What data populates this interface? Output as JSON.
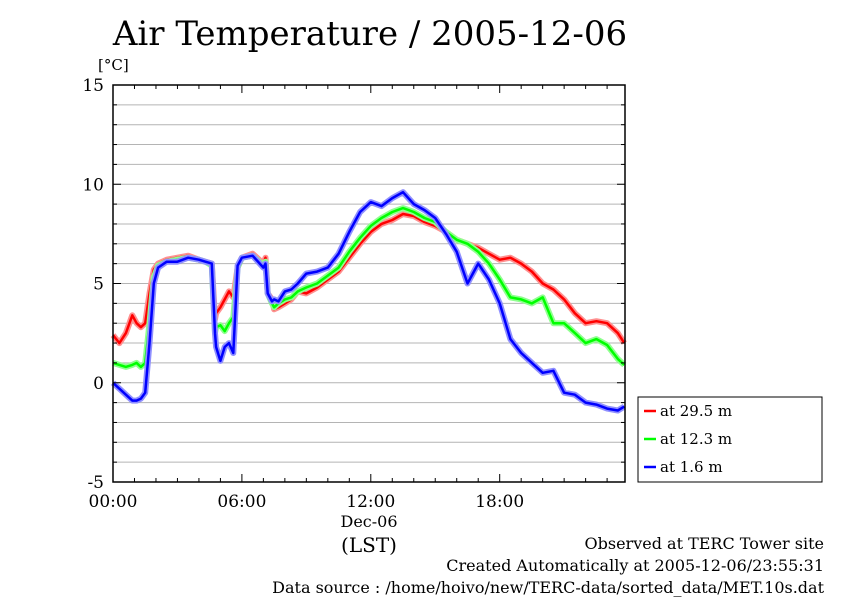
{
  "chart_data": {
    "type": "line",
    "title": "Air Temperature / 2005-12-06",
    "ylabel": "[°C]",
    "ylim": [
      -5,
      15
    ],
    "yticks": [
      -5,
      0,
      5,
      10,
      15
    ],
    "xlim": [
      0,
      23.833
    ],
    "xticks": [
      {
        "hour": 0,
        "label": "00:00"
      },
      {
        "hour": 6,
        "label": "06:00"
      },
      {
        "hour": 12,
        "label": "12:00"
      },
      {
        "hour": 18,
        "label": "18:00"
      }
    ],
    "xsub": "Dec-06",
    "xunit": "(LST)",
    "grid": true,
    "legend_position": "bottom-right outside",
    "series": [
      {
        "name": "at 29.5 m",
        "color": "#ff0000",
        "x": [
          0,
          0.3,
          0.6,
          0.9,
          1.1,
          1.3,
          1.5,
          1.7,
          1.9,
          2.1,
          2.5,
          3,
          3.5,
          4,
          4.3,
          4.6,
          4.75,
          4.8,
          5,
          5.2,
          5.4,
          5.6,
          5.8,
          6,
          6.5,
          7,
          7.1,
          7.2,
          7.4,
          7.5,
          7.7,
          8,
          8.3,
          8.6,
          9,
          9.5,
          10,
          10.5,
          11,
          11.5,
          12,
          12.5,
          13,
          13.5,
          14,
          14.5,
          15,
          15.5,
          16,
          16.5,
          17,
          17.5,
          18,
          18.5,
          19,
          19.5,
          20,
          20.5,
          21,
          21.5,
          22,
          22.5,
          23,
          23.5,
          23.8
        ],
        "values": [
          2.4,
          2.0,
          2.5,
          3.4,
          3.0,
          2.8,
          3.0,
          4.5,
          5.7,
          6.0,
          6.2,
          6.3,
          6.4,
          6.2,
          6.1,
          6.0,
          3.2,
          3.5,
          3.8,
          4.2,
          4.6,
          4.3,
          5.8,
          6.3,
          6.5,
          6.0,
          6.3,
          4.5,
          4.2,
          3.7,
          3.8,
          4.0,
          4.2,
          4.6,
          4.5,
          4.8,
          5.2,
          5.6,
          6.3,
          7.0,
          7.6,
          8.0,
          8.2,
          8.5,
          8.4,
          8.1,
          7.9,
          7.6,
          7.2,
          7.0,
          6.8,
          6.5,
          6.2,
          6.3,
          6.0,
          5.6,
          5.0,
          4.7,
          4.2,
          3.5,
          3.0,
          3.1,
          3.0,
          2.5,
          2.0
        ]
      },
      {
        "name": "at 12.3 m",
        "color": "#00ff00",
        "x": [
          0,
          0.3,
          0.6,
          0.9,
          1.1,
          1.3,
          1.5,
          1.7,
          1.9,
          2.1,
          2.5,
          3,
          3.5,
          4,
          4.3,
          4.6,
          4.75,
          4.8,
          5,
          5.2,
          5.4,
          5.6,
          5.8,
          6,
          6.5,
          7,
          7.1,
          7.2,
          7.4,
          7.5,
          7.7,
          8,
          8.3,
          8.6,
          9,
          9.5,
          10,
          10.5,
          11,
          11.5,
          12,
          12.5,
          13,
          13.5,
          14,
          14.5,
          15,
          15.5,
          16,
          16.5,
          17,
          17.5,
          18,
          18.5,
          19,
          19.5,
          20,
          20.5,
          21,
          21.5,
          22,
          22.5,
          23,
          23.5,
          23.8
        ],
        "values": [
          1.0,
          0.9,
          0.8,
          0.9,
          1.0,
          0.8,
          1.0,
          3.0,
          5.3,
          5.9,
          6.1,
          6.2,
          6.3,
          6.2,
          6.1,
          5.9,
          2.5,
          2.8,
          2.9,
          2.6,
          3.0,
          3.3,
          5.8,
          6.3,
          6.4,
          5.9,
          6.1,
          4.5,
          4.0,
          3.8,
          4.0,
          4.2,
          4.3,
          4.6,
          4.8,
          5.0,
          5.4,
          5.8,
          6.6,
          7.3,
          7.9,
          8.3,
          8.6,
          8.8,
          8.6,
          8.3,
          8.1,
          7.6,
          7.2,
          7.0,
          6.6,
          6.0,
          5.2,
          4.3,
          4.2,
          4.0,
          4.3,
          3.0,
          3.0,
          2.5,
          2.0,
          2.2,
          1.9,
          1.2,
          0.9
        ]
      },
      {
        "name": "at 1.6 m",
        "color": "#0000ff",
        "x": [
          0,
          0.3,
          0.6,
          0.9,
          1.1,
          1.3,
          1.5,
          1.7,
          1.9,
          2.1,
          2.5,
          3,
          3.5,
          4,
          4.3,
          4.6,
          4.75,
          4.8,
          5,
          5.2,
          5.4,
          5.6,
          5.8,
          6,
          6.5,
          7,
          7.1,
          7.2,
          7.4,
          7.5,
          7.7,
          8,
          8.3,
          8.6,
          9,
          9.5,
          10,
          10.5,
          11,
          11.5,
          12,
          12.5,
          13,
          13.5,
          14,
          14.5,
          15,
          15.5,
          16,
          16.5,
          17,
          17.5,
          18,
          18.5,
          19,
          19.5,
          20,
          20.5,
          21,
          21.5,
          22,
          22.5,
          23,
          23.5,
          23.8
        ],
        "values": [
          0.0,
          -0.3,
          -0.6,
          -0.9,
          -0.9,
          -0.8,
          -0.5,
          2.0,
          5.0,
          5.8,
          6.1,
          6.1,
          6.3,
          6.2,
          6.1,
          6.0,
          2.5,
          1.8,
          1.1,
          1.8,
          2.0,
          1.5,
          5.9,
          6.3,
          6.4,
          5.8,
          6.0,
          4.5,
          4.1,
          4.2,
          4.1,
          4.6,
          4.7,
          5.0,
          5.5,
          5.6,
          5.8,
          6.5,
          7.6,
          8.6,
          9.1,
          8.9,
          9.3,
          9.6,
          9.0,
          8.7,
          8.3,
          7.5,
          6.6,
          5.0,
          6.0,
          5.2,
          4.0,
          2.2,
          1.5,
          1.0,
          0.5,
          0.6,
          -0.5,
          -0.6,
          -1.0,
          -1.1,
          -1.3,
          -1.4,
          -1.2
        ]
      }
    ]
  },
  "footer": {
    "line1": "Observed at TERC Tower site",
    "line2": "Created Automatically at 2005-12-06/23:55:31",
    "line3": "Data source : /home/hoivo/new/TERC-data/sorted_data/MET.10s.dat"
  }
}
